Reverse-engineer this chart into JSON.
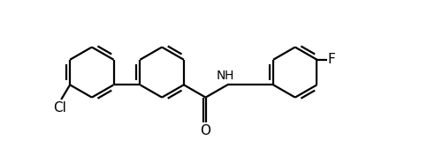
{
  "background_color": "#ffffff",
  "line_color": "#000000",
  "line_width": 1.6,
  "font_size": 10,
  "figsize": [
    5.01,
    1.76
  ],
  "dpi": 100,
  "xlim": [
    0,
    10.5
  ],
  "ylim": [
    -0.5,
    3.8
  ]
}
